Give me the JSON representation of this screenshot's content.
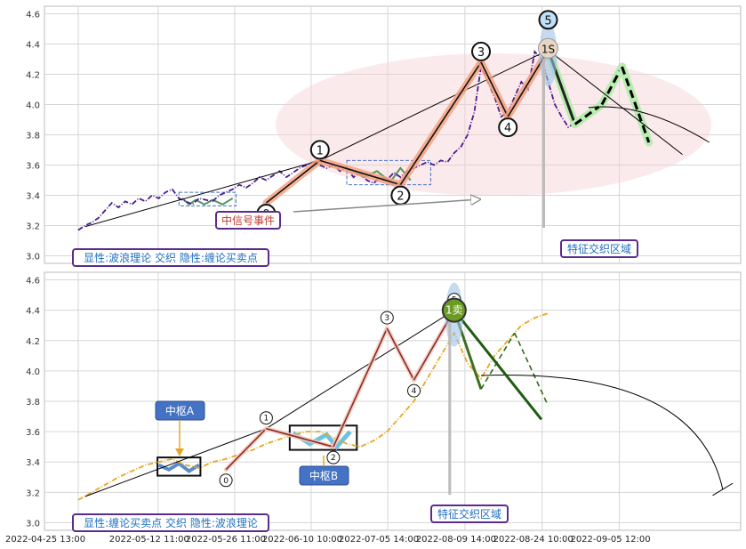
{
  "chart_data": {
    "type": "line",
    "title": "",
    "x_tick_labels": [
      "2022-04-25 13:00",
      "2022-05-12 11:00",
      "2022-05-26 11:00",
      "2022-06-10 10:00",
      "2022-07-05 14:00",
      "2022-08-09 14:00",
      "2022-08-24 10:00",
      "2022-09-05 12:00"
    ],
    "x_range": [
      0,
      100
    ],
    "x_tick_positions": [
      0,
      11.9,
      23.3,
      34.7,
      46.1,
      57.6,
      69.1,
      80.6
    ],
    "panels": [
      {
        "id": "top",
        "ylim": [
          2.95,
          4.65
        ],
        "y_ticks": [
          3.0,
          3.2,
          3.4,
          3.6,
          3.8,
          4.0,
          4.2,
          4.4,
          4.6
        ],
        "legend_label": "显性:波浪理论 交织 隐性:缠论买卖点",
        "event_label": "中信号事件",
        "zone_label": "特征交织区域",
        "price_series": {
          "color": "#4b1c8e",
          "style": "dashdot",
          "x": [
            0,
            1,
            2,
            3,
            4,
            5,
            6,
            7,
            8,
            9,
            10,
            11,
            12,
            13,
            14,
            15,
            16,
            17,
            18,
            19,
            20,
            21,
            22,
            23,
            24,
            25,
            26,
            27,
            28,
            29,
            30,
            31,
            32,
            33,
            34,
            35,
            36,
            37,
            38,
            39,
            40,
            41,
            42,
            43,
            44,
            45,
            46,
            47,
            48,
            49,
            50,
            51,
            52,
            53,
            54,
            55,
            56,
            57,
            58,
            59,
            60,
            61,
            62,
            63,
            64,
            65,
            66,
            67,
            68,
            69,
            70,
            71,
            72,
            73,
            74,
            75
          ],
          "y": [
            3.17,
            3.2,
            3.22,
            3.25,
            3.3,
            3.35,
            3.32,
            3.36,
            3.34,
            3.38,
            3.36,
            3.4,
            3.38,
            3.42,
            3.44,
            3.38,
            3.36,
            3.34,
            3.38,
            3.37,
            3.36,
            3.4,
            3.42,
            3.44,
            3.47,
            3.45,
            3.48,
            3.52,
            3.5,
            3.53,
            3.56,
            3.52,
            3.55,
            3.58,
            3.6,
            3.62,
            3.6,
            3.58,
            3.6,
            3.56,
            3.58,
            3.52,
            3.55,
            3.5,
            3.48,
            3.52,
            3.5,
            3.55,
            3.52,
            3.56,
            3.58,
            3.6,
            3.62,
            3.6,
            3.63,
            3.62,
            3.68,
            3.72,
            3.8,
            3.95,
            4.25,
            4.15,
            4.05,
            3.92,
            3.95,
            4.05,
            4.15,
            4.1,
            4.35,
            4.3,
            4.15,
            4.0,
            3.92,
            3.85,
            3.88,
            3.9
          ]
        },
        "wave_points": [
          {
            "label": "0",
            "x": 28,
            "y": 3.35
          },
          {
            "label": "1",
            "x": 36,
            "y": 3.63
          },
          {
            "label": "2",
            "x": 48,
            "y": 3.47
          },
          {
            "label": "3",
            "x": 60,
            "y": 4.28
          },
          {
            "label": "4",
            "x": 64,
            "y": 3.92
          },
          {
            "label": "5",
            "x": 70,
            "y": 4.36
          }
        ],
        "forecast": {
          "x": [
            70,
            74,
            78,
            81,
            85
          ],
          "y": [
            4.36,
            3.87,
            4.0,
            4.25,
            3.75
          ]
        },
        "signal_label": "1S"
      },
      {
        "id": "bottom",
        "ylim": [
          2.95,
          4.65
        ],
        "y_ticks": [
          3.0,
          3.2,
          3.4,
          3.6,
          3.8,
          4.0,
          4.2,
          4.4,
          4.6
        ],
        "legend_label": "显性:缠论买卖点 交织 隐性:波浪理论",
        "zone_label": "特征交织区域",
        "pivot_a_label": "中枢A",
        "pivot_b_label": "中枢B",
        "sell_label": "1卖",
        "price_series": {
          "color": "#e5a823",
          "style": "dashdot",
          "x": [
            0,
            2,
            4,
            6,
            8,
            10,
            12,
            14,
            16,
            18,
            20,
            22,
            24,
            26,
            28,
            30,
            32,
            34,
            36,
            38,
            40,
            42,
            44,
            46,
            48,
            50,
            52,
            54,
            56,
            58,
            60,
            62,
            64,
            66,
            68,
            70
          ],
          "y": [
            3.15,
            3.2,
            3.25,
            3.3,
            3.34,
            3.38,
            3.4,
            3.42,
            3.38,
            3.36,
            3.4,
            3.42,
            3.45,
            3.48,
            3.52,
            3.55,
            3.58,
            3.6,
            3.6,
            3.56,
            3.52,
            3.5,
            3.54,
            3.6,
            3.7,
            3.8,
            3.95,
            4.1,
            4.25,
            4.05,
            3.95,
            4.1,
            4.2,
            4.3,
            4.35,
            4.38
          ]
        },
        "pen_points": [
          {
            "label": "0",
            "x": 22,
            "y": 3.35
          },
          {
            "label": "1",
            "x": 28,
            "y": 3.62
          },
          {
            "label": "2",
            "x": 38,
            "y": 3.5
          },
          {
            "label": "3",
            "x": 46,
            "y": 4.28
          },
          {
            "label": "4",
            "x": 50,
            "y": 3.94
          },
          {
            "label": "5",
            "x": 56,
            "y": 4.4
          }
        ],
        "forecast": {
          "x": [
            56,
            60,
            65,
            70
          ],
          "y": [
            4.4,
            3.88,
            4.25,
            3.77
          ]
        }
      }
    ]
  }
}
